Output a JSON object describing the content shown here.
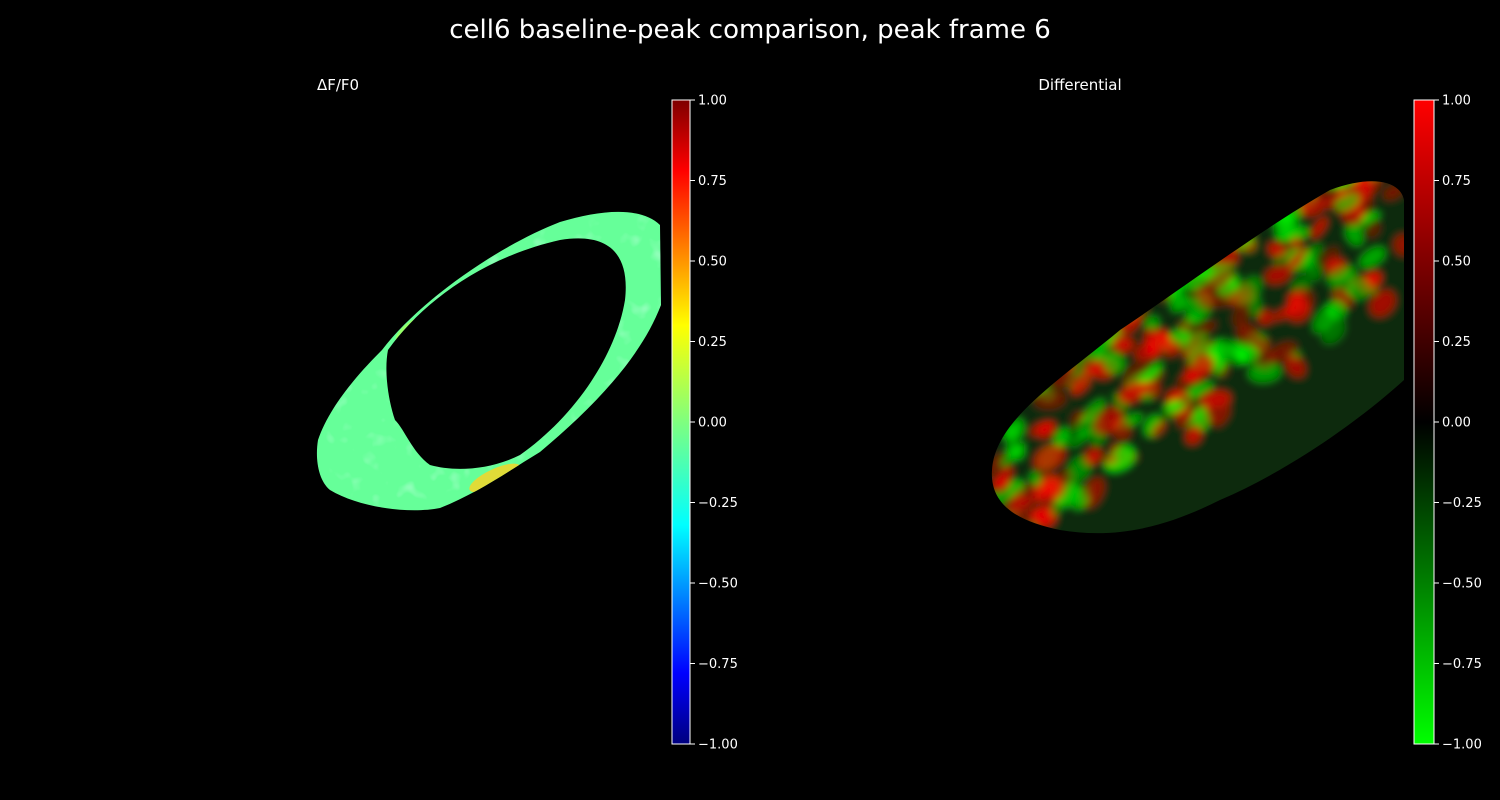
{
  "figure": {
    "title": "cell6 baseline-peak comparison, peak frame 6",
    "background": "#000000"
  },
  "chart_data": [
    {
      "type": "heatmap",
      "title": "ΔF/F0",
      "colormap": "jet",
      "colorbar": {
        "vmin": -1.0,
        "vmax": 1.0,
        "ticks": [
          1.0,
          0.75,
          0.5,
          0.25,
          0.0,
          -0.25,
          -0.5,
          -0.75,
          -1.0
        ],
        "tick_labels": [
          "1.00",
          "0.75",
          "0.50",
          "0.25",
          "0.00",
          "−0.25",
          "−0.50",
          "−0.75",
          "−1.00"
        ]
      },
      "typical_value": -0.05,
      "description_value_range": [
        -0.15,
        0.35
      ],
      "axes": "off"
    },
    {
      "type": "heatmap",
      "title": "Differential",
      "colormap": "green-black-red",
      "colormap_colors": {
        "low": "#00ff00",
        "mid": "#000000",
        "high": "#ff0000"
      },
      "colorbar": {
        "vmin": -1.0,
        "vmax": 1.0,
        "ticks": [
          1.0,
          0.75,
          0.5,
          0.25,
          0.0,
          -0.25,
          -0.5,
          -0.75,
          -1.0
        ],
        "tick_labels": [
          "1.00",
          "0.75",
          "0.50",
          "0.25",
          "0.00",
          "−0.25",
          "−0.50",
          "−0.75",
          "−1.00"
        ]
      },
      "axes": "off"
    }
  ]
}
